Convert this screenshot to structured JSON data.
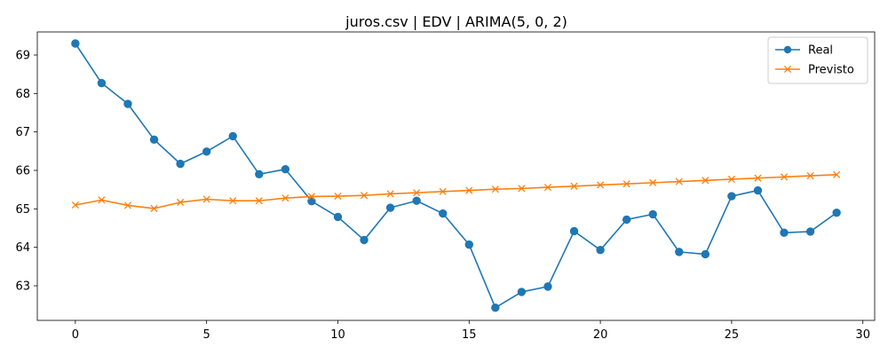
{
  "chart_data": {
    "type": "line",
    "title": "juros.csv | EDV | ARIMA(5, 0, 2)",
    "xlabel": "",
    "ylabel": "",
    "x": [
      0,
      1,
      2,
      3,
      4,
      5,
      6,
      7,
      8,
      9,
      10,
      11,
      12,
      13,
      14,
      15,
      16,
      17,
      18,
      19,
      20,
      21,
      22,
      23,
      24,
      25,
      26,
      27,
      28,
      29
    ],
    "xlim": [
      -1.45,
      30.45
    ],
    "ylim": [
      62.1,
      69.6
    ],
    "xticks": [
      0,
      5,
      10,
      15,
      20,
      25,
      30
    ],
    "yticks": [
      63,
      64,
      65,
      66,
      67,
      68,
      69
    ],
    "grid": false,
    "legend_position": "upper right",
    "series": [
      {
        "name": "Real",
        "color": "#1f77b4",
        "marker": "circle",
        "values": [
          69.3,
          68.27,
          67.73,
          66.8,
          66.17,
          66.49,
          66.89,
          65.9,
          66.03,
          65.2,
          64.79,
          64.19,
          65.03,
          65.21,
          64.88,
          64.07,
          62.43,
          62.84,
          62.98,
          64.42,
          63.93,
          64.72,
          64.86,
          63.88,
          63.82,
          65.33,
          65.48,
          64.38,
          64.41,
          64.9
        ]
      },
      {
        "name": "Previsto",
        "color": "#ff7f0e",
        "marker": "x",
        "values": [
          65.1,
          65.23,
          65.09,
          65.01,
          65.17,
          65.25,
          65.21,
          65.21,
          65.28,
          65.32,
          65.33,
          65.35,
          65.39,
          65.42,
          65.45,
          65.48,
          65.51,
          65.53,
          65.56,
          65.59,
          65.62,
          65.65,
          65.68,
          65.71,
          65.74,
          65.77,
          65.8,
          65.83,
          65.86,
          65.89
        ]
      }
    ]
  }
}
